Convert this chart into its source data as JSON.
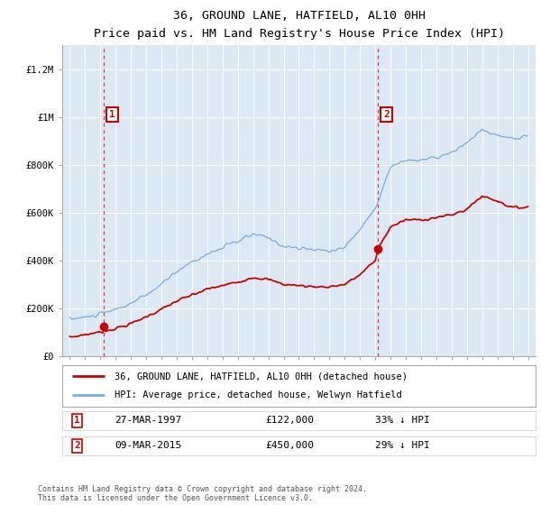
{
  "title": "36, GROUND LANE, HATFIELD, AL10 0HH",
  "subtitle": "Price paid vs. HM Land Registry's House Price Index (HPI)",
  "sale1_date": 1997.23,
  "sale1_price": 122000,
  "sale1_label": "27-MAR-1997",
  "sale1_amount": "£122,000",
  "sale1_pct": "33% ↓ HPI",
  "sale2_date": 2015.18,
  "sale2_price": 450000,
  "sale2_label": "09-MAR-2015",
  "sale2_amount": "£450,000",
  "sale2_pct": "29% ↓ HPI",
  "legend1": "36, GROUND LANE, HATFIELD, AL10 0HH (detached house)",
  "legend2": "HPI: Average price, detached house, Welwyn Hatfield",
  "footnote1": "Contains HM Land Registry data © Crown copyright and database right 2024.",
  "footnote2": "This data is licensed under the Open Government Licence v3.0.",
  "red_color": "#cc0000",
  "blue_color": "#7aabdb",
  "plot_bg": "#dce9f5",
  "ylim": [
    0,
    1300000
  ],
  "xlim": [
    1994.5,
    2025.5
  ],
  "yticks": [
    0,
    200000,
    400000,
    600000,
    800000,
    1000000,
    1200000
  ],
  "ytick_labels": [
    "£0",
    "£200K",
    "£400K",
    "£600K",
    "£800K",
    "£1M",
    "£1.2M"
  ],
  "hpi_seed": 10,
  "red_seed": 7
}
